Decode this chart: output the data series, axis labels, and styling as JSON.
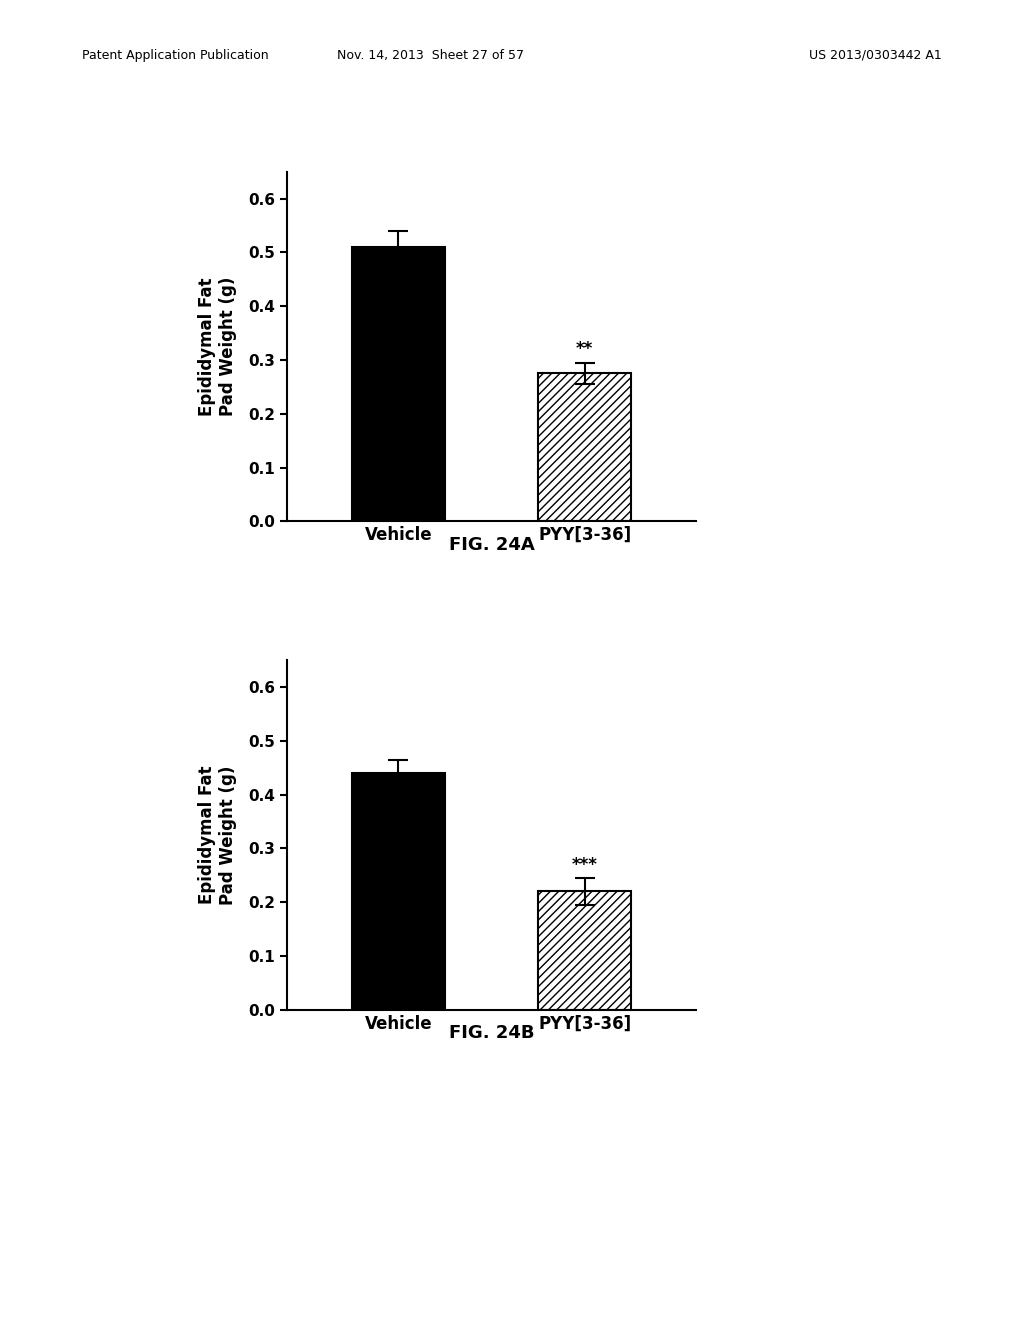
{
  "header_left": "Patent Application Publication",
  "header_mid": "Nov. 14, 2013  Sheet 27 of 57",
  "header_right": "US 2013/0303442 A1",
  "fig_a": {
    "categories": [
      "Vehicle",
      "PYY[3-36]"
    ],
    "values": [
      0.51,
      0.275
    ],
    "errors": [
      0.03,
      0.02
    ],
    "hatch_pattern": "////",
    "ylabel": "Epididymal Fat\nPad Weight (g)",
    "ylim": [
      0.0,
      0.65
    ],
    "yticks": [
      0.0,
      0.1,
      0.2,
      0.3,
      0.4,
      0.5,
      0.6
    ],
    "significance": "**",
    "fig_label": "FIG. 24A"
  },
  "fig_b": {
    "categories": [
      "Vehicle",
      "PYY[3-36]"
    ],
    "values": [
      0.44,
      0.22
    ],
    "errors": [
      0.025,
      0.025
    ],
    "hatch_pattern": "////",
    "ylabel": "Epididymal Fat\nPad Weight (g)",
    "ylim": [
      0.0,
      0.65
    ],
    "yticks": [
      0.0,
      0.1,
      0.2,
      0.3,
      0.4,
      0.5,
      0.6
    ],
    "significance": "***",
    "fig_label": "FIG. 24B"
  },
  "background_color": "#ffffff",
  "font_size_ylabel": 12,
  "font_size_ticks": 11,
  "font_size_xlabel": 12,
  "font_size_sig": 12,
  "font_size_label": 13,
  "font_size_header": 9
}
